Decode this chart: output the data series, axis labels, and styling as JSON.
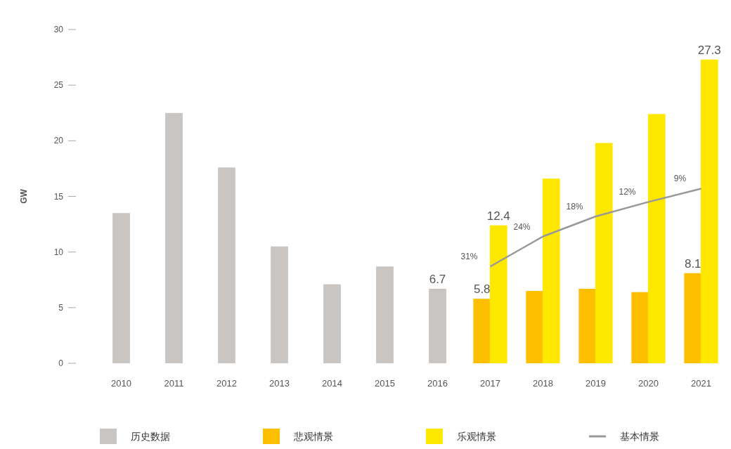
{
  "chart_data": {
    "type": "bar",
    "ylabel": "GW",
    "categories": [
      "2010",
      "2011",
      "2012",
      "2013",
      "2014",
      "2015",
      "2016",
      "2017",
      "2018",
      "2019",
      "2020",
      "2021"
    ],
    "series": [
      {
        "name": "历史数据",
        "color": "#c8c5c2",
        "values": [
          13.5,
          22.5,
          17.6,
          10.5,
          7.1,
          8.7,
          6.7,
          null,
          null,
          null,
          null,
          null
        ],
        "value_labels": [
          null,
          null,
          null,
          null,
          null,
          null,
          "6.7",
          null,
          null,
          null,
          null,
          null
        ]
      },
      {
        "name": "悲观情景",
        "color": "#fdbf00",
        "values": [
          null,
          null,
          null,
          null,
          null,
          null,
          null,
          5.8,
          6.5,
          6.7,
          6.4,
          8.1
        ],
        "value_labels": [
          null,
          null,
          null,
          null,
          null,
          null,
          null,
          "5.8",
          null,
          null,
          null,
          "8.1"
        ]
      },
      {
        "name": "乐观情景",
        "color": "#ffe800",
        "values": [
          null,
          null,
          null,
          null,
          null,
          null,
          null,
          12.4,
          16.6,
          19.8,
          22.4,
          27.3
        ],
        "value_labels": [
          null,
          null,
          null,
          null,
          null,
          null,
          null,
          "12.4",
          null,
          null,
          null,
          "27.3"
        ]
      },
      {
        "name": "基本情景",
        "type": "line",
        "color": "#999999",
        "values": [
          null,
          null,
          null,
          null,
          null,
          null,
          null,
          8.7,
          11.4,
          13.2,
          14.5,
          15.7
        ]
      }
    ],
    "annotations": [
      {
        "text": "31%",
        "x": "2017",
        "y": 8.7
      },
      {
        "text": "24%",
        "x": "2018",
        "y": 11.4
      },
      {
        "text": "18%",
        "x": "2019",
        "y": 13.2
      },
      {
        "text": "12%",
        "x": "2020",
        "y": 14.5
      },
      {
        "text": "9%",
        "x": "2021",
        "y": 15.7
      }
    ],
    "ylim": [
      0,
      30
    ],
    "yticks": [
      0,
      5,
      10,
      15,
      20,
      25,
      30
    ],
    "grid": false,
    "legend": "bottom"
  }
}
